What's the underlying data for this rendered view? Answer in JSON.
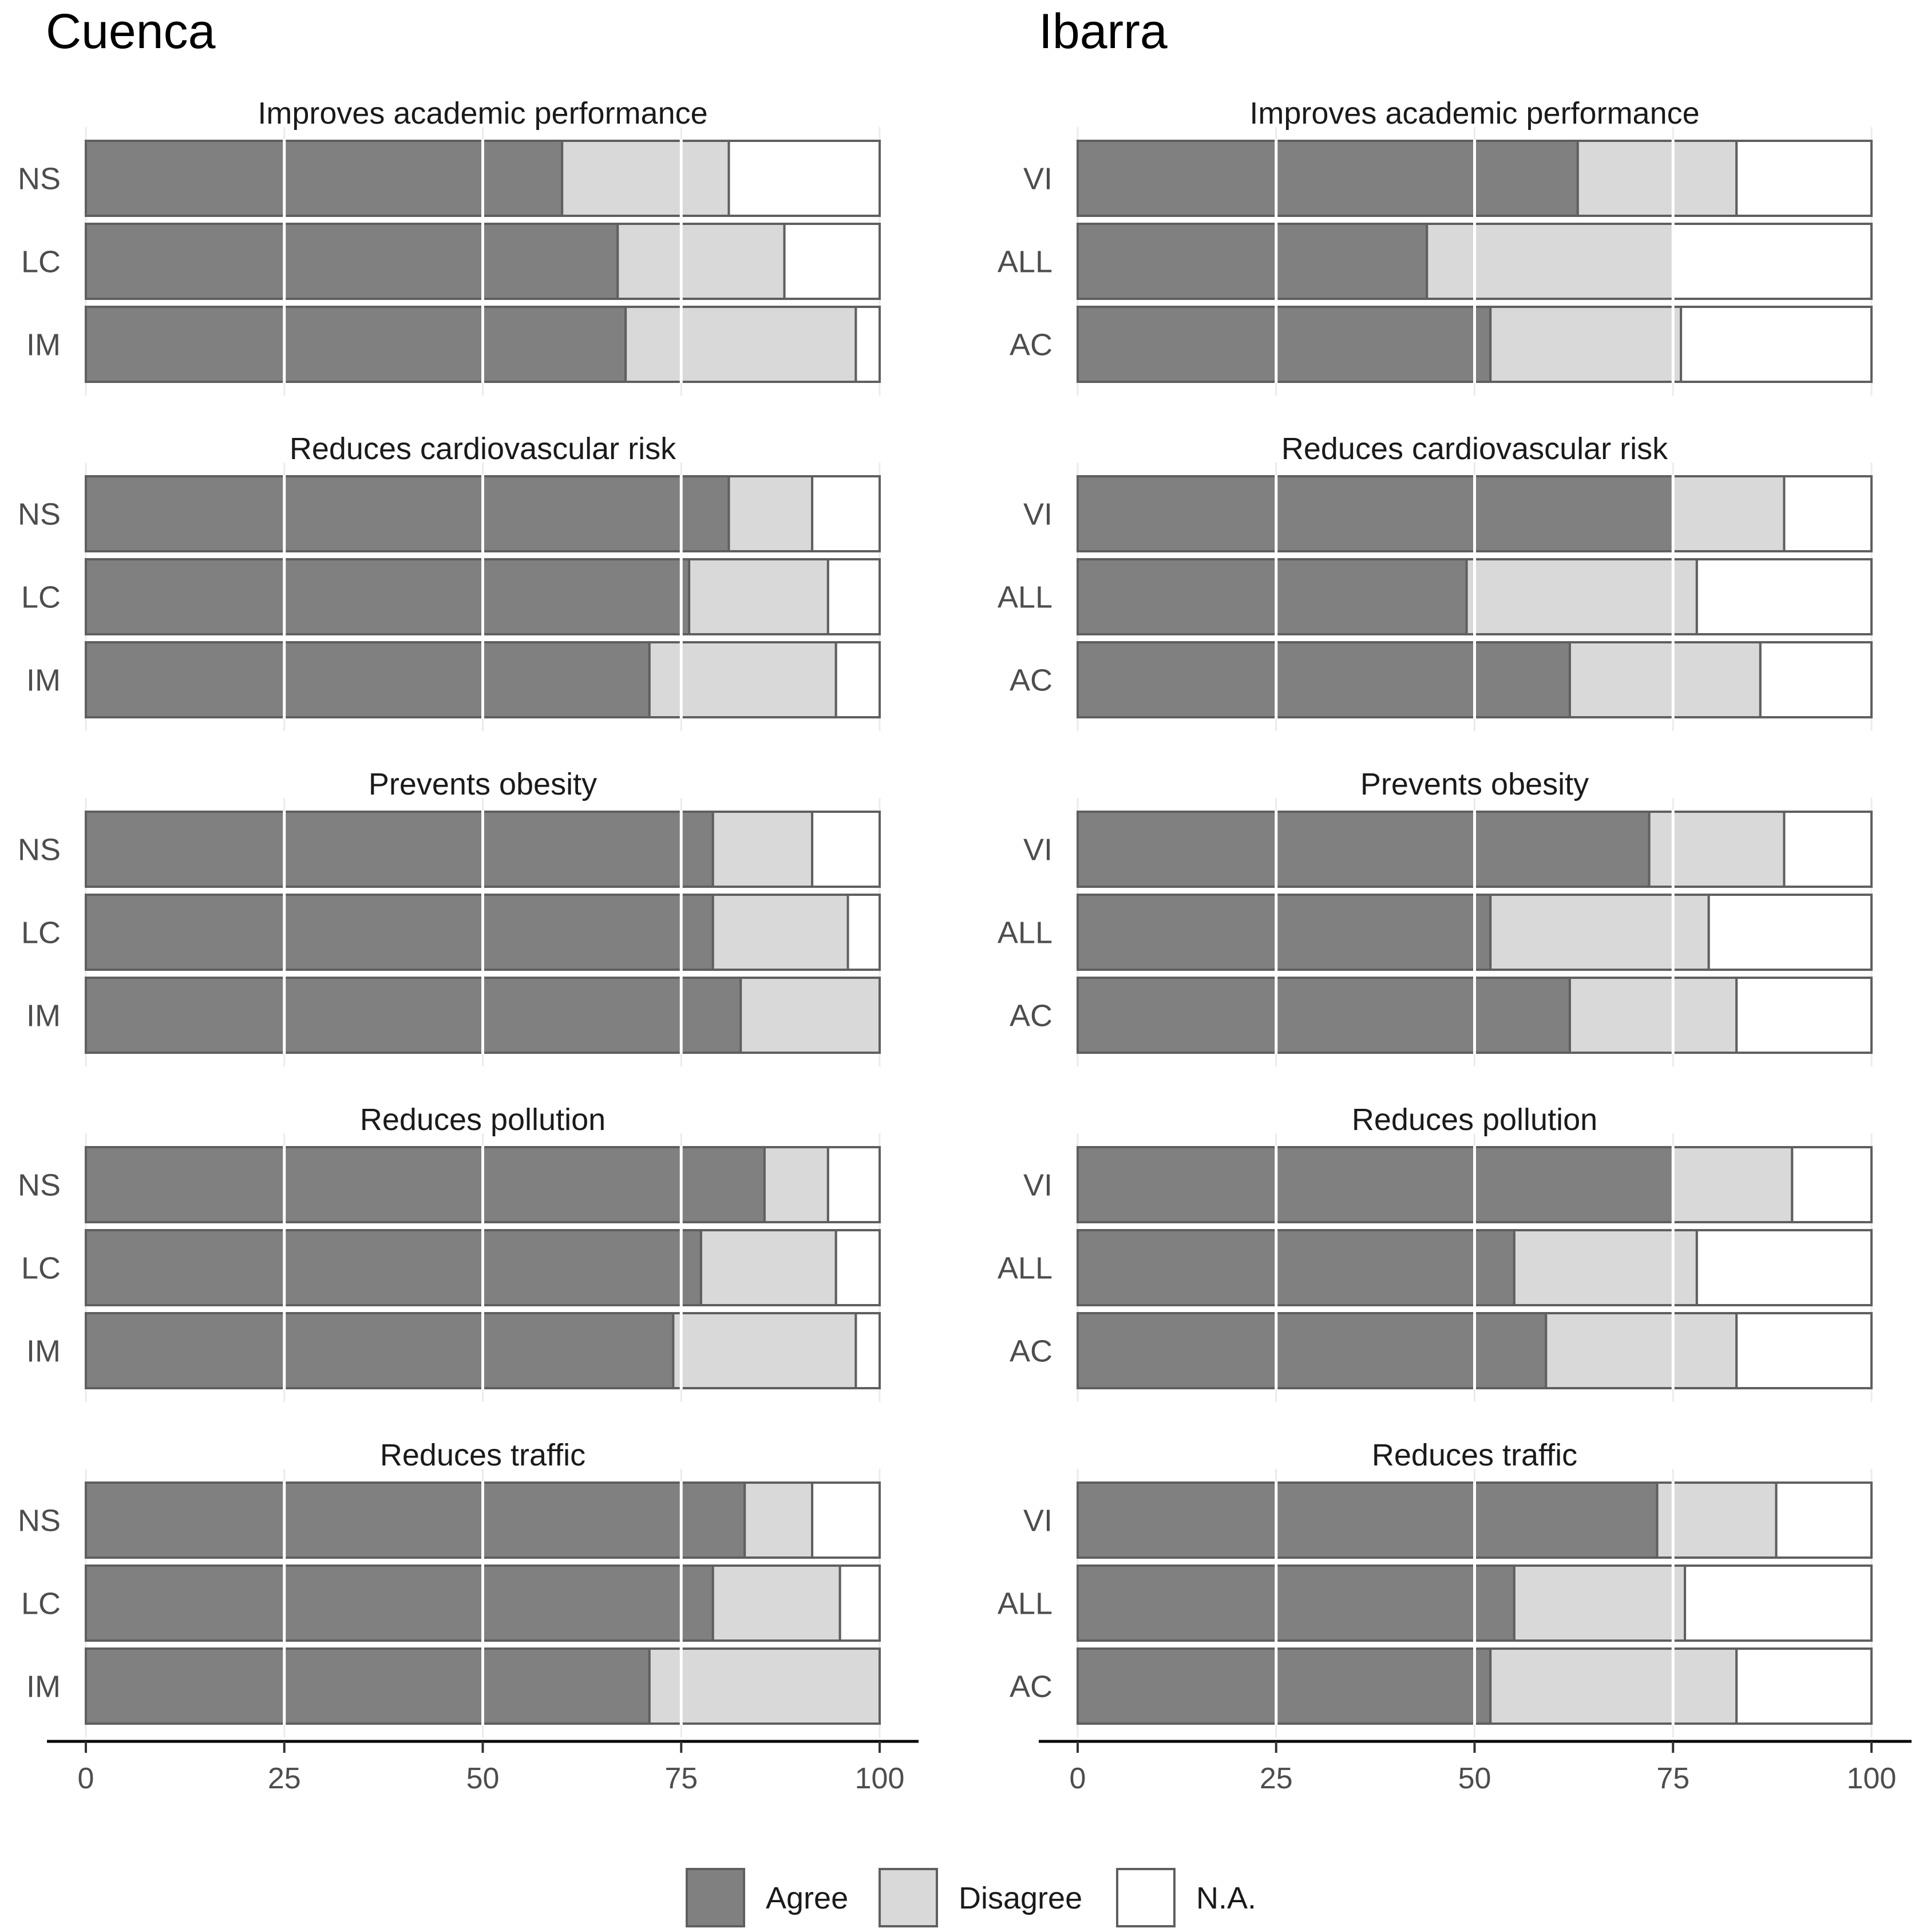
{
  "chart_data": {
    "type": "bar",
    "orientation": "horizontal-stacked",
    "xlim": [
      0,
      100
    ],
    "x_ticks": [
      0,
      25,
      50,
      75,
      100
    ],
    "x_tick_labels": [
      "0",
      "25",
      "50",
      "75",
      "100"
    ],
    "legend": {
      "position": "bottom",
      "entries": [
        {
          "label": "Agree",
          "color": "#808080"
        },
        {
          "label": "Disagree",
          "color": "#d9d9d9"
        },
        {
          "label": "N.A.",
          "color": "#ffffff"
        }
      ]
    },
    "panels": [
      {
        "title": "Cuenca",
        "groups": [
          "NS",
          "LC",
          "IM"
        ],
        "facets": [
          {
            "title": "Improves academic performance",
            "bars": [
              {
                "label": "NS",
                "agree": 60,
                "disagree": 21,
                "na": 19
              },
              {
                "label": "LC",
                "agree": 67,
                "disagree": 21,
                "na": 12
              },
              {
                "label": "IM",
                "agree": 68,
                "disagree": 29,
                "na": 3
              }
            ]
          },
          {
            "title": "Reduces cardiovascular risk",
            "bars": [
              {
                "label": "NS",
                "agree": 81,
                "disagree": 10.5,
                "na": 8.5
              },
              {
                "label": "LC",
                "agree": 76,
                "disagree": 17.5,
                "na": 6.5
              },
              {
                "label": "IM",
                "agree": 71,
                "disagree": 23.5,
                "na": 5.5
              }
            ]
          },
          {
            "title": "Prevents obesity",
            "bars": [
              {
                "label": "NS",
                "agree": 79,
                "disagree": 12.5,
                "na": 8.5
              },
              {
                "label": "LC",
                "agree": 79,
                "disagree": 17,
                "na": 4
              },
              {
                "label": "IM",
                "agree": 82.5,
                "disagree": 17.5,
                "na": 0
              }
            ]
          },
          {
            "title": "Reduces pollution",
            "bars": [
              {
                "label": "NS",
                "agree": 85.5,
                "disagree": 8,
                "na": 6.5
              },
              {
                "label": "LC",
                "agree": 77.5,
                "disagree": 17,
                "na": 5.5
              },
              {
                "label": "IM",
                "agree": 74,
                "disagree": 23,
                "na": 3
              }
            ]
          },
          {
            "title": "Reduces traffic",
            "bars": [
              {
                "label": "NS",
                "agree": 83,
                "disagree": 8.5,
                "na": 8.5
              },
              {
                "label": "LC",
                "agree": 79,
                "disagree": 16,
                "na": 5
              },
              {
                "label": "IM",
                "agree": 71,
                "disagree": 29,
                "na": 0
              }
            ]
          }
        ]
      },
      {
        "title": "Ibarra",
        "groups": [
          "VI",
          "ALL",
          "AC"
        ],
        "facets": [
          {
            "title": "Improves academic performance",
            "bars": [
              {
                "label": "VI",
                "agree": 63,
                "disagree": 20,
                "na": 17
              },
              {
                "label": "ALL",
                "agree": 44,
                "disagree": 31,
                "na": 25
              },
              {
                "label": "AC",
                "agree": 52,
                "disagree": 24,
                "na": 24
              }
            ]
          },
          {
            "title": "Reduces cardiovascular risk",
            "bars": [
              {
                "label": "VI",
                "agree": 75,
                "disagree": 14,
                "na": 11
              },
              {
                "label": "ALL",
                "agree": 49,
                "disagree": 29,
                "na": 22
              },
              {
                "label": "AC",
                "agree": 62,
                "disagree": 24,
                "na": 14
              }
            ]
          },
          {
            "title": "Prevents obesity",
            "bars": [
              {
                "label": "VI",
                "agree": 72,
                "disagree": 17,
                "na": 11
              },
              {
                "label": "ALL",
                "agree": 52,
                "disagree": 27.5,
                "na": 20.5
              },
              {
                "label": "AC",
                "agree": 62,
                "disagree": 21,
                "na": 17
              }
            ]
          },
          {
            "title": "Reduces pollution",
            "bars": [
              {
                "label": "VI",
                "agree": 75,
                "disagree": 15,
                "na": 10
              },
              {
                "label": "ALL",
                "agree": 55,
                "disagree": 23,
                "na": 22
              },
              {
                "label": "AC",
                "agree": 59,
                "disagree": 24,
                "na": 17
              }
            ]
          },
          {
            "title": "Reduces traffic",
            "bars": [
              {
                "label": "VI",
                "agree": 73,
                "disagree": 15,
                "na": 12
              },
              {
                "label": "ALL",
                "agree": 55,
                "disagree": 21.5,
                "na": 23.5
              },
              {
                "label": "AC",
                "agree": 52,
                "disagree": 31,
                "na": 17
              }
            ]
          }
        ]
      }
    ]
  }
}
